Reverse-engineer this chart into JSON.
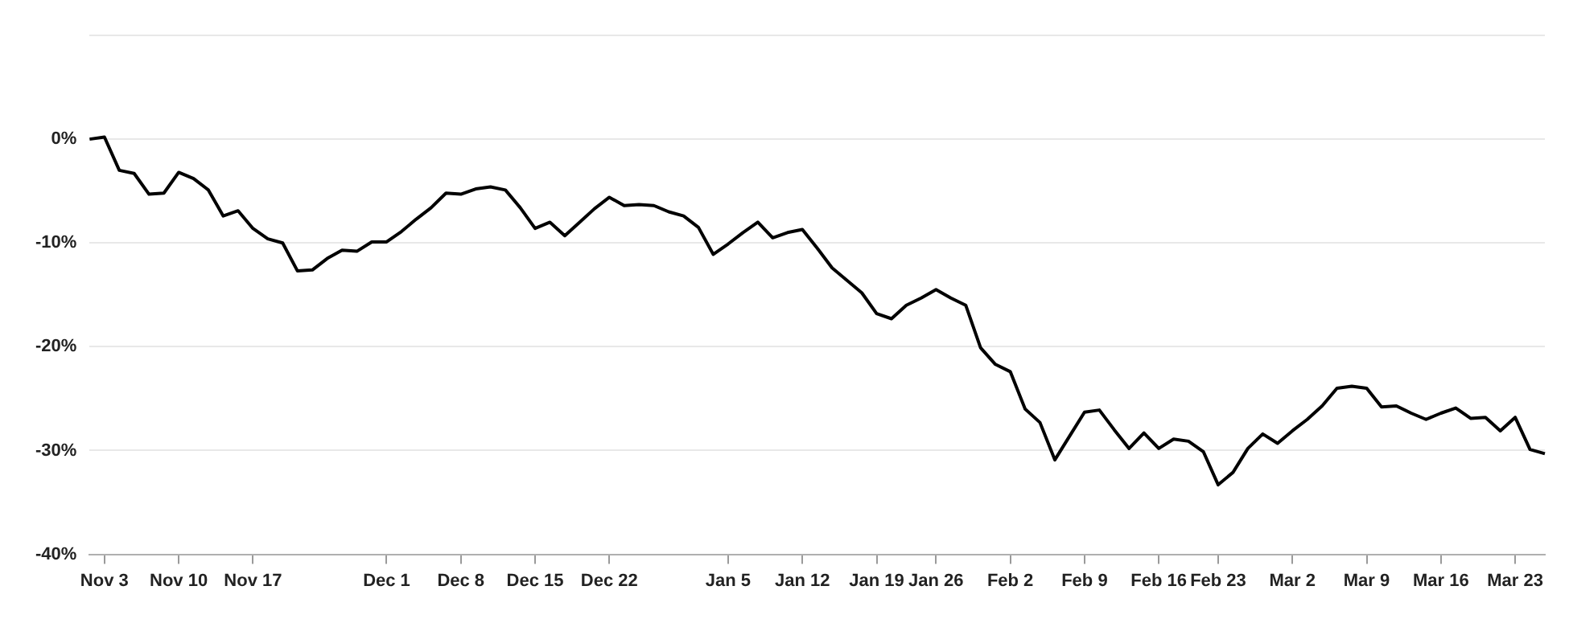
{
  "chart_data": {
    "type": "line",
    "categories": [
      null,
      "Nov 3",
      null,
      null,
      null,
      null,
      "Nov 10",
      null,
      null,
      null,
      null,
      "Nov 17",
      null,
      null,
      null,
      null,
      null,
      null,
      null,
      null,
      "Dec 1",
      null,
      null,
      null,
      null,
      "Dec 8",
      null,
      null,
      null,
      null,
      "Dec 15",
      null,
      null,
      null,
      null,
      "Dec 22",
      null,
      null,
      null,
      null,
      null,
      null,
      null,
      "Jan 5",
      null,
      null,
      null,
      null,
      "Jan 12",
      null,
      null,
      null,
      null,
      "Jan 19",
      null,
      null,
      null,
      "Jan 26",
      null,
      null,
      null,
      null,
      "Feb 2",
      null,
      null,
      null,
      null,
      "Feb 9",
      null,
      null,
      null,
      null,
      "Feb 16",
      null,
      null,
      null,
      "Feb 23",
      null,
      null,
      null,
      null,
      "Mar 2",
      null,
      null,
      null,
      null,
      "Mar 9",
      null,
      null,
      null,
      null,
      "Mar 16",
      null,
      null,
      null,
      null,
      "Mar 23",
      null,
      null
    ],
    "series": [
      {
        "color": "#000000",
        "values": [
          0,
          0.2,
          -3.0,
          -3.3,
          -5.3,
          -5.2,
          -3.2,
          -3.8,
          -4.9,
          -7.4,
          -6.9,
          -8.6,
          -9.6,
          -10.0,
          -12.7,
          -12.6,
          -11.5,
          -10.7,
          -10.8,
          -9.9,
          -9.9,
          -8.9,
          -7.7,
          -6.6,
          -5.2,
          -5.3,
          -4.8,
          -4.6,
          -4.9,
          -6.6,
          -8.6,
          -8.0,
          -9.3,
          -8.0,
          -6.7,
          -5.6,
          -6.4,
          -6.3,
          -6.4,
          -7.0,
          -7.4,
          -8.5,
          -11.1,
          -10.1,
          -9.0,
          -8.0,
          -9.5,
          -9.0,
          -8.7,
          -10.5,
          -12.4,
          -13.6,
          -14.8,
          -16.8,
          -17.3,
          -16.0,
          -15.3,
          -14.5,
          -15.3,
          -16.0,
          -20.1,
          -21.7,
          -22.4,
          -26.0,
          -27.3,
          -30.9,
          -28.6,
          -26.3,
          -26.1,
          -28.0,
          -29.8,
          -28.3,
          -29.8,
          -28.9,
          -29.1,
          -30.1,
          -33.3,
          -32.1,
          -29.8,
          -28.4,
          -29.3,
          -28.1,
          -27.0,
          -25.7,
          -24.0,
          -23.8,
          -24.0,
          -25.8,
          -25.7,
          -26.4,
          -27.0,
          -26.4,
          -25.9,
          -26.9,
          -26.8,
          -28.1,
          -26.8,
          -29.9,
          -30.3
        ]
      }
    ],
    "ylim": [
      -40,
      10
    ],
    "yticks": [
      {
        "value": -40,
        "label": "-40%"
      },
      {
        "value": -30,
        "label": "-30%"
      },
      {
        "value": -20,
        "label": "-20%"
      },
      {
        "value": -10,
        "label": "-10%"
      },
      {
        "value": 0,
        "label": "0%"
      },
      {
        "value": 10,
        "label": null
      }
    ],
    "grid": "y",
    "legend": false,
    "marker": "none",
    "line_style": "solid"
  }
}
